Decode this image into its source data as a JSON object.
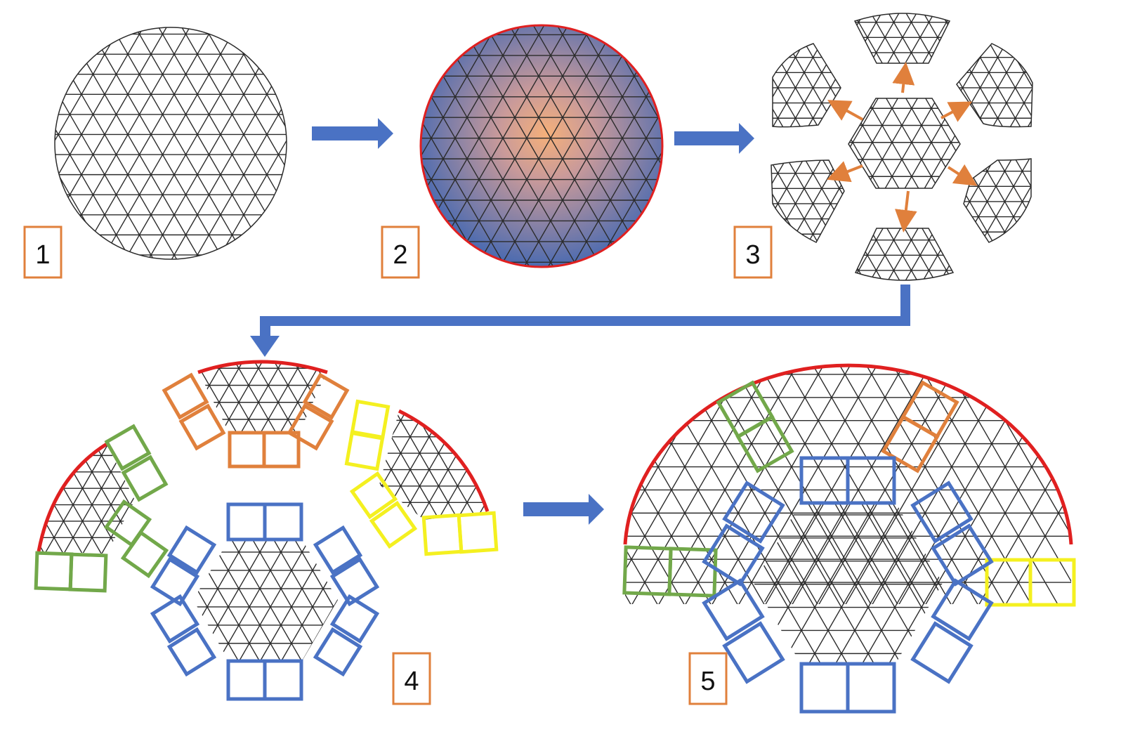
{
  "steps": [
    {
      "id": 1,
      "label": "1"
    },
    {
      "id": 2,
      "label": "2"
    },
    {
      "id": 3,
      "label": "3"
    },
    {
      "id": 4,
      "label": "4"
    },
    {
      "id": 5,
      "label": "5"
    }
  ],
  "colors": {
    "mesh": "#2b2b2b",
    "flow_arrow": "#4a72c4",
    "label_box": "#e0803c",
    "spread_arrow": "#e0803c",
    "boundary": "#e02020",
    "gradient_center": "#f5b07a",
    "gradient_edge": "#4c6bb0",
    "blue_boxes": "#4a72c4",
    "green_boxes": "#72a84a",
    "orange_boxes": "#e0803c",
    "yellow_boxes": "#f4f020"
  }
}
